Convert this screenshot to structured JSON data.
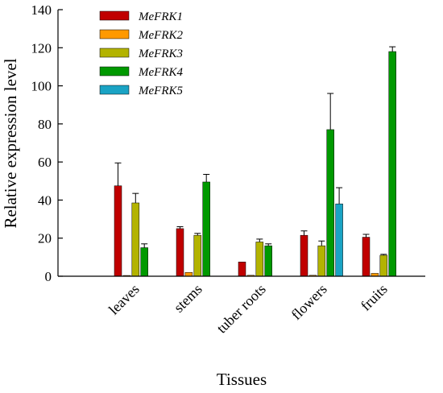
{
  "chart_data": {
    "type": "bar",
    "xlabel": "Tissues",
    "ylabel": "Relative expression level",
    "ylim": [
      0,
      140
    ],
    "yticks": [
      "0",
      "20",
      "40",
      "60",
      "80",
      "100",
      "120",
      "140"
    ],
    "categories": [
      "leaves",
      "stems",
      "tuber roots",
      "flowers",
      "fruits"
    ],
    "legend_position": "top-left",
    "grid": false,
    "series": [
      {
        "name": "MeFRK1",
        "color": "#c00000",
        "values": [
          47.5,
          25,
          7.5,
          21.5,
          20.5
        ],
        "errors": [
          12,
          1,
          0,
          2.3,
          1.5
        ]
      },
      {
        "name": "MeFRK2",
        "color": "#ff9900",
        "values": [
          0.4,
          2,
          0.5,
          0.5,
          1.5
        ],
        "errors": [
          0,
          0,
          0,
          0,
          0
        ]
      },
      {
        "name": "MeFRK3",
        "color": "#b3b300",
        "values": [
          38.5,
          21.5,
          18,
          16,
          11
        ],
        "errors": [
          5,
          1,
          1.5,
          2.5,
          0.5
        ]
      },
      {
        "name": "MeFRK4",
        "color": "#009900",
        "values": [
          15,
          49.5,
          16,
          77,
          118
        ],
        "errors": [
          2,
          4,
          1,
          19,
          2.5
        ]
      },
      {
        "name": "MeFRK5",
        "color": "#1aa3c4",
        "values": [
          0,
          0,
          0,
          38,
          0
        ],
        "errors": [
          0,
          0,
          0,
          8.5,
          0
        ]
      }
    ]
  }
}
